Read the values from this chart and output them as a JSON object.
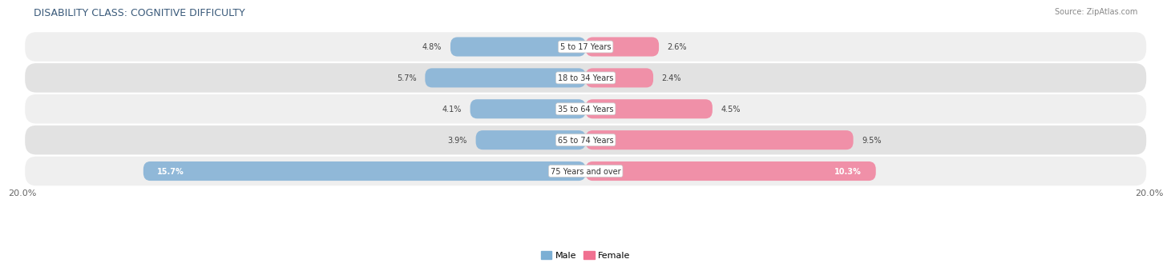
{
  "title": "DISABILITY CLASS: COGNITIVE DIFFICULTY",
  "source": "Source: ZipAtlas.com",
  "categories": [
    "5 to 17 Years",
    "18 to 34 Years",
    "35 to 64 Years",
    "65 to 74 Years",
    "75 Years and over"
  ],
  "male_values": [
    4.8,
    5.7,
    4.1,
    3.9,
    15.7
  ],
  "female_values": [
    2.6,
    2.4,
    4.5,
    9.5,
    10.3
  ],
  "max_val": 20.0,
  "male_color": "#90b8d8",
  "female_color": "#f090a8",
  "row_bg_light": "#efefef",
  "row_bg_dark": "#e2e2e2",
  "title_color": "#3a5a7a",
  "value_color": "#444444",
  "category_color": "#333333",
  "source_color": "#888888",
  "legend_male_color": "#7bafd4",
  "legend_female_color": "#f07090",
  "bg_color": "#ffffff",
  "axis_label_color": "#666666"
}
